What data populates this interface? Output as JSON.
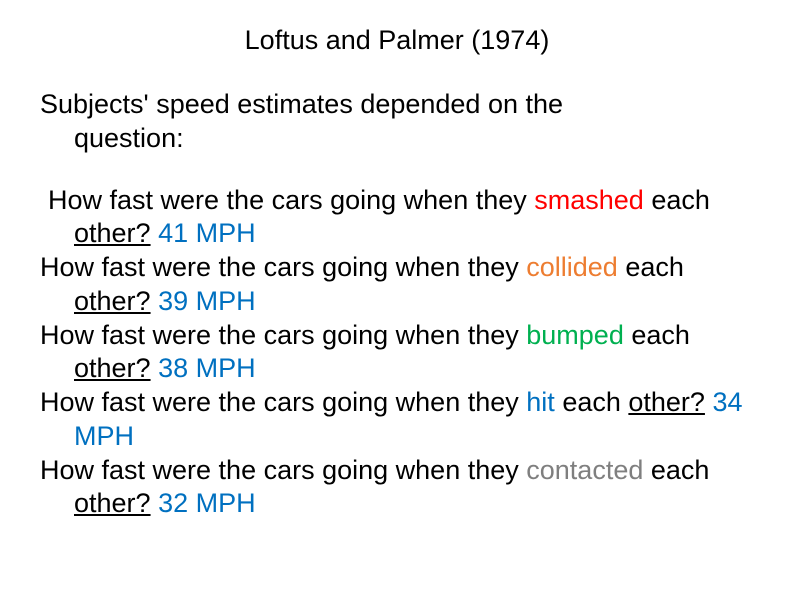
{
  "colors": {
    "title": "#000000",
    "body": "#000000",
    "mph": "#0070c0",
    "verbs": {
      "smashed": "#ff0000",
      "collided": "#ed7d31",
      "bumped": "#00b050",
      "hit": "#0070c0",
      "contacted": "#7f7f7f"
    },
    "background": "#ffffff"
  },
  "typography": {
    "font_family": "Arial",
    "title_fontsize_pt": 20,
    "body_fontsize_pt": 20,
    "line_height": 1.25
  },
  "title": "Loftus and Palmer (1974)",
  "intro_line1": "Subjects' speed estimates depended on the",
  "intro_line2": "question:",
  "items": [
    {
      "lead_space": " ",
      "prefix": "How fast were the cars going when they ",
      "verb": "smashed",
      "verb_color_key": "red",
      "mid": " ",
      "tail_before_u": "each ",
      "tail_u": "other?",
      "mph": "41 MPH"
    },
    {
      "lead_space": "",
      "prefix": "How fast were the cars going when they ",
      "verb": "collided",
      "verb_color_key": "darkorange",
      "mid": " ",
      "tail_before_u": "each ",
      "tail_u": "other?",
      "mph": "39 MPH"
    },
    {
      "lead_space": "",
      "prefix": "How fast were the cars going when they ",
      "verb": "bumped",
      "verb_color_key": "green",
      "mid": " ",
      "tail_before_u": "each ",
      "tail_u": "other?",
      "mph": "38 MPH"
    },
    {
      "lead_space": "",
      "prefix": "How fast were the cars going when they ",
      "verb": "hit",
      "verb_color_key": "blue",
      "mid": " ",
      "tail_before_u": "each ",
      "tail_u": "other?",
      "mph": "34 MPH"
    },
    {
      "lead_space": "",
      "prefix": "How fast were the cars going when they ",
      "verb": "contacted",
      "verb_color_key": "gray",
      "mid": " ",
      "tail_before_u": "each ",
      "tail_u": "other?",
      "mph": "32 MPH"
    }
  ]
}
